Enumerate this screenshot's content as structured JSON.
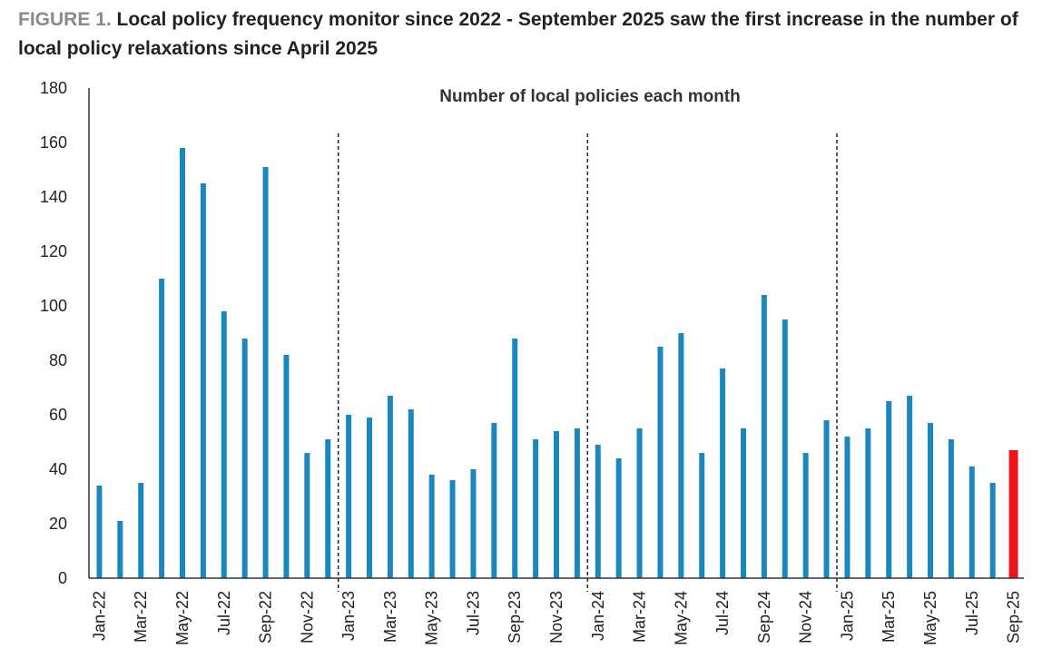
{
  "figure": {
    "label": "FIGURE 1.",
    "title": "Local policy frequency monitor since 2022 - September 2025 saw the first increase in the number of local policy relaxations since April 2025"
  },
  "colors": {
    "bar": "#1b87bf",
    "highlight": "#e8161b",
    "axis": "#333333",
    "divider": "#222222"
  },
  "chart_data": {
    "type": "bar",
    "title": "Number of local policies each month",
    "xlabel": "",
    "ylabel": "",
    "ylim": [
      0,
      180
    ],
    "yticks": [
      0,
      20,
      40,
      60,
      80,
      100,
      120,
      140,
      160,
      180
    ],
    "grid": false,
    "legend": "none",
    "categories": [
      "Jan-22",
      "Feb-22",
      "Mar-22",
      "Apr-22",
      "May-22",
      "Jun-22",
      "Jul-22",
      "Aug-22",
      "Sep-22",
      "Oct-22",
      "Nov-22",
      "Dec-22",
      "Jan-23",
      "Feb-23",
      "Mar-23",
      "Apr-23",
      "May-23",
      "Jun-23",
      "Jul-23",
      "Aug-23",
      "Sep-23",
      "Oct-23",
      "Nov-23",
      "Dec-23",
      "Jan-24",
      "Feb-24",
      "Mar-24",
      "Apr-24",
      "May-24",
      "Jun-24",
      "Jul-24",
      "Aug-24",
      "Sep-24",
      "Oct-24",
      "Nov-24",
      "Dec-24",
      "Jan-25",
      "Feb-25",
      "Mar-25",
      "Apr-25",
      "May-25",
      "Jun-25",
      "Jul-25",
      "Aug-25",
      "Sep-25"
    ],
    "values": [
      34,
      21,
      35,
      110,
      158,
      145,
      98,
      88,
      151,
      82,
      46,
      51,
      60,
      59,
      67,
      62,
      38,
      36,
      40,
      57,
      88,
      51,
      54,
      55,
      49,
      44,
      55,
      85,
      90,
      46,
      77,
      55,
      104,
      95,
      46,
      58,
      52,
      55,
      65,
      67,
      57,
      51,
      41,
      35,
      47
    ],
    "highlight": [
      "Sep-25"
    ],
    "year_dividers_before": [
      "Jan-23",
      "Jan-24",
      "Jan-25"
    ],
    "tick_labels": [
      "Jan-22",
      "Mar-22",
      "May-22",
      "Jul-22",
      "Sep-22",
      "Nov-22",
      "Jan-23",
      "Mar-23",
      "May-23",
      "Jul-23",
      "Sep-23",
      "Nov-23",
      "Jan-24",
      "Mar-24",
      "May-24",
      "Jul-24",
      "Sep-24",
      "Nov-24",
      "Jan-25",
      "Mar-25",
      "May-25",
      "Jul-25",
      "Sep-25"
    ]
  }
}
